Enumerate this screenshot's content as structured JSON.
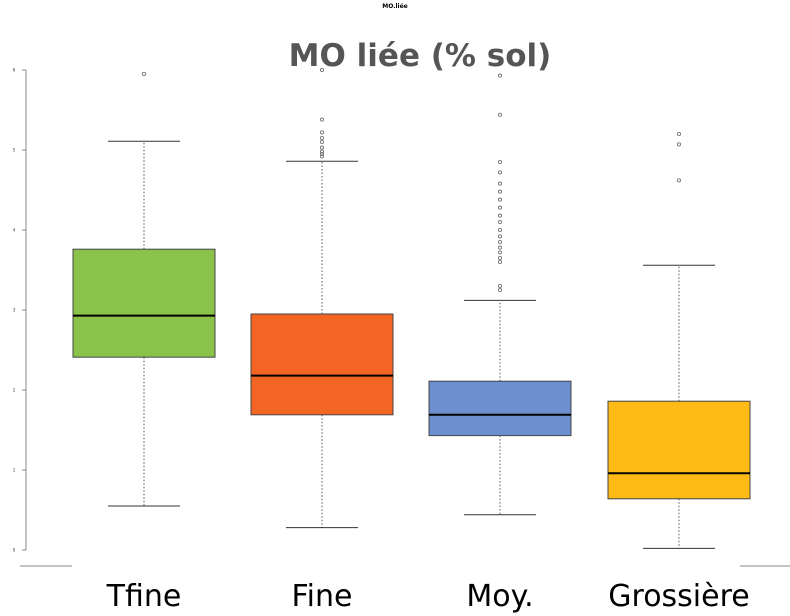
{
  "chart_data": {
    "type": "boxplot",
    "small_title": "MO.liée",
    "title": "MO liée (% sol)",
    "categories": [
      "Tfine",
      "Fine",
      "Moy.",
      "Grossière"
    ],
    "colors": [
      "#8bc34a",
      "#f26522",
      "#6b8fcf",
      "#ffbb15"
    ],
    "ylim": [
      -0.2,
      6.7
    ],
    "y_ticks": [
      0,
      1,
      2,
      3,
      4,
      5,
      6
    ],
    "y_tick_labels": [
      "0",
      "1",
      "2",
      "3",
      "4",
      "5",
      "6"
    ],
    "grid": false,
    "boxes": [
      {
        "name": "Tfine",
        "whisker_low": 0.55,
        "q1": 2.41,
        "median": 2.93,
        "q3": 3.76,
        "whisker_high": 5.11,
        "outliers": [
          5.95
        ]
      },
      {
        "name": "Fine",
        "whisker_low": 0.28,
        "q1": 1.69,
        "median": 2.18,
        "q3": 2.95,
        "whisker_high": 4.86,
        "outliers": [
          4.92,
          4.95,
          4.98,
          5.03,
          5.1,
          5.15,
          5.22,
          5.38,
          6.0
        ]
      },
      {
        "name": "Moy.",
        "whisker_low": 0.44,
        "q1": 1.43,
        "median": 1.69,
        "q3": 2.11,
        "whisker_high": 3.12,
        "outliers": [
          3.25,
          3.3,
          3.6,
          3.65,
          3.72,
          3.78,
          3.85,
          3.92,
          4.0,
          4.1,
          4.18,
          4.28,
          4.38,
          4.48,
          4.58,
          4.72,
          4.85,
          5.44,
          5.93
        ]
      },
      {
        "name": "Grossière",
        "whisker_low": 0.02,
        "q1": 0.64,
        "median": 0.96,
        "q3": 1.86,
        "whisker_high": 3.56,
        "outliers": [
          4.62,
          5.07,
          5.2
        ]
      }
    ]
  }
}
